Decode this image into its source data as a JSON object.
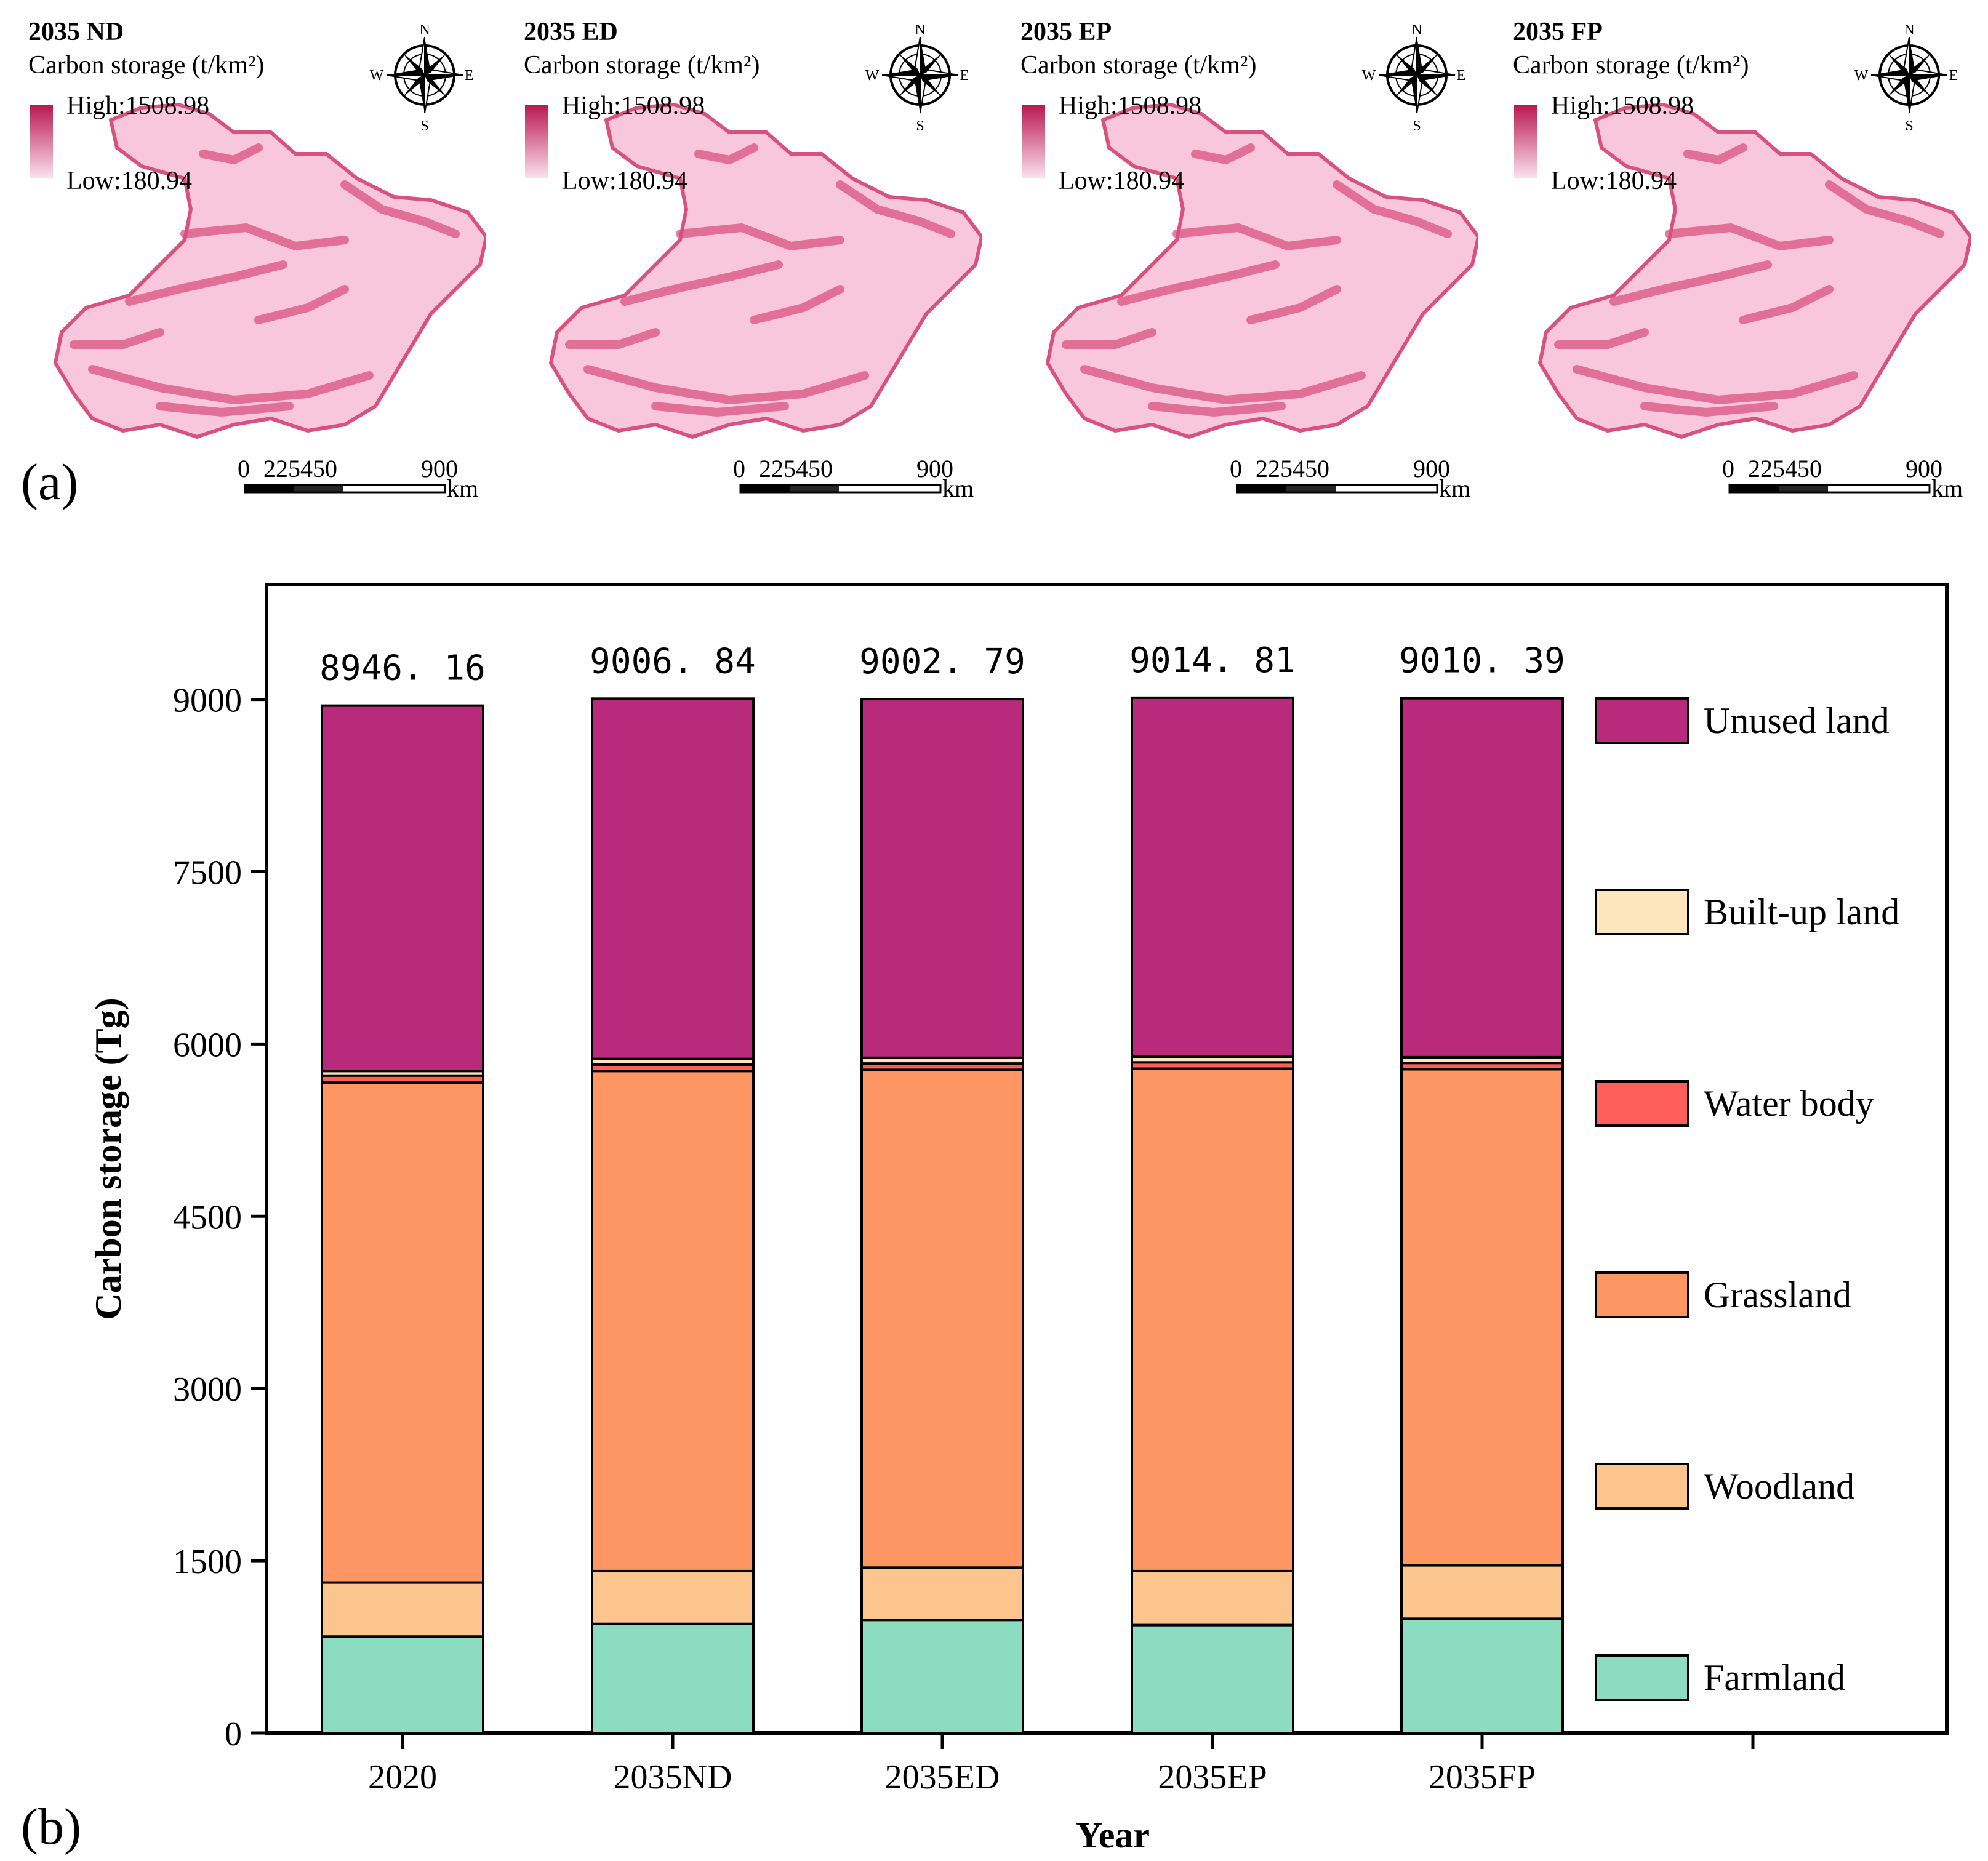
{
  "panel_a_label": "(a)",
  "panel_b_label": "(b)",
  "maps": [
    {
      "title": "2035 ND"
    },
    {
      "title": "2035 ED"
    },
    {
      "title": "2035 EP"
    },
    {
      "title": "2035 FP"
    }
  ],
  "map_legend": {
    "title": "Carbon storage (t/km²)",
    "high": "High:1508.98",
    "low": "Low:180.94",
    "color_high": "#b8174f",
    "color_low": "#fbe3ee"
  },
  "map_colors": {
    "land_light": "#f9c7dc",
    "land_dark": "#d9527f"
  },
  "compass": {
    "n": "N",
    "s": "S",
    "e": "E",
    "w": "W"
  },
  "scale_bar": {
    "ticks": [
      "0",
      "225450",
      "900"
    ],
    "unit": "km"
  },
  "chart_data": {
    "type": "bar",
    "stacked": true,
    "xlabel": "Year",
    "ylabel": "Carbon storage (Tg)",
    "ylim": [
      0,
      10000
    ],
    "yticks": [
      0,
      1500,
      3000,
      4500,
      6000,
      7500,
      9000
    ],
    "categories": [
      "2020",
      "2035ND",
      "2035ED",
      "2035EP",
      "2035FP"
    ],
    "totals": [
      "8946. 16",
      "9006. 84",
      "9002. 79",
      "9014. 81",
      "9010. 39"
    ],
    "legend_position": "right",
    "series": [
      {
        "name": "Farmland",
        "color": "#8cdcc2",
        "values": [
          840,
          950,
          985,
          940,
          995
        ]
      },
      {
        "name": "Woodland",
        "color": "#fdc58e",
        "values": [
          470,
          460,
          455,
          470,
          465
        ]
      },
      {
        "name": "Grassland",
        "color": "#fe9663",
        "values": [
          4355,
          4355,
          4335,
          4375,
          4320
        ]
      },
      {
        "name": "Water body",
        "color": "#fe5f5a",
        "values": [
          60,
          55,
          55,
          55,
          55
        ]
      },
      {
        "name": "Built-up land",
        "color": "#fee6bc",
        "values": [
          40,
          50,
          50,
          50,
          50
        ]
      },
      {
        "name": "Unused land",
        "color": "#b92a7c",
        "values": [
          3181.16,
          3136.84,
          3122.79,
          3124.81,
          3125.39
        ]
      }
    ]
  }
}
